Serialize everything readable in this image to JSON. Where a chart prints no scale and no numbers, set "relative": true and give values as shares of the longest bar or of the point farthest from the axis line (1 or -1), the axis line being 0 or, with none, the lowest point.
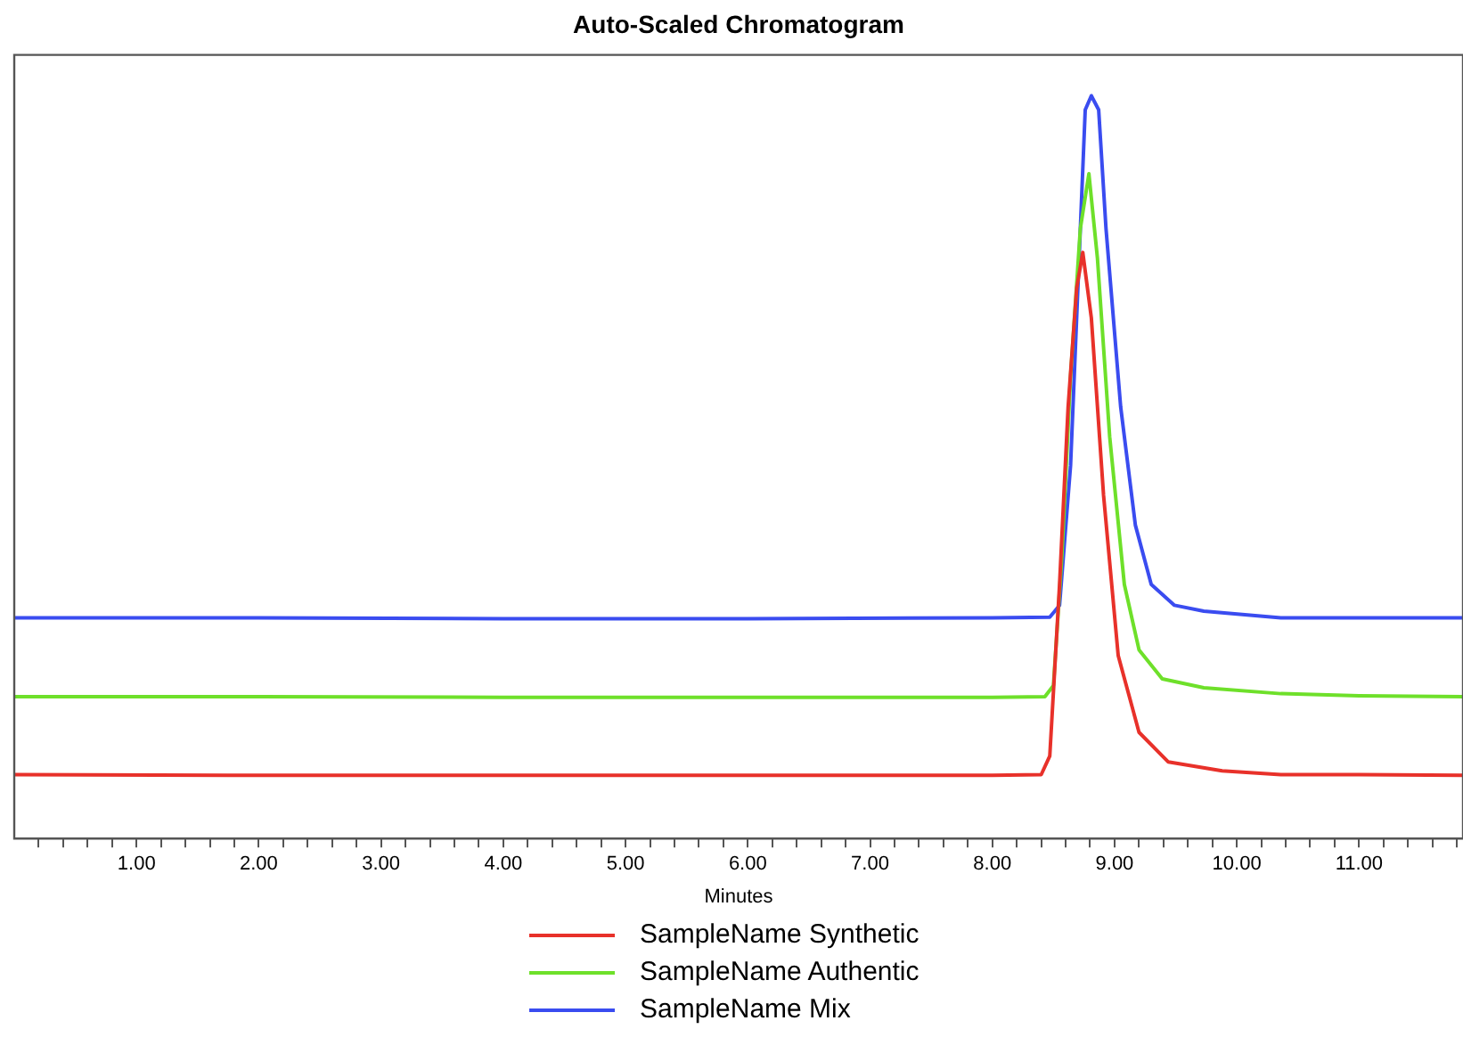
{
  "chart_data": {
    "type": "line",
    "title": "Auto-Scaled Chromatogram",
    "xlabel": "Minutes",
    "relative": true,
    "legend": "bottom",
    "grid": false,
    "marker": "none",
    "line_style": "solid",
    "xlim": [
      0,
      11.85
    ],
    "xticks": [
      {
        "value": 0.2,
        "label": null
      },
      {
        "value": 0.4,
        "label": null
      },
      {
        "value": 0.6,
        "label": null
      },
      {
        "value": 0.8,
        "label": null
      },
      {
        "value": 1,
        "label": "1.00"
      },
      {
        "value": 1.2,
        "label": null
      },
      {
        "value": 1.4,
        "label": null
      },
      {
        "value": 1.6,
        "label": null
      },
      {
        "value": 1.8,
        "label": null
      },
      {
        "value": 2,
        "label": "2.00"
      },
      {
        "value": 2.2,
        "label": null
      },
      {
        "value": 2.4,
        "label": null
      },
      {
        "value": 2.6,
        "label": null
      },
      {
        "value": 2.8,
        "label": null
      },
      {
        "value": 3,
        "label": "3.00"
      },
      {
        "value": 3.2,
        "label": null
      },
      {
        "value": 3.4,
        "label": null
      },
      {
        "value": 3.6,
        "label": null
      },
      {
        "value": 3.8,
        "label": null
      },
      {
        "value": 4,
        "label": "4.00"
      },
      {
        "value": 4.2,
        "label": null
      },
      {
        "value": 4.4,
        "label": null
      },
      {
        "value": 4.6,
        "label": null
      },
      {
        "value": 4.8,
        "label": null
      },
      {
        "value": 5,
        "label": "5.00"
      },
      {
        "value": 5.2,
        "label": null
      },
      {
        "value": 5.4,
        "label": null
      },
      {
        "value": 5.6,
        "label": null
      },
      {
        "value": 5.8,
        "label": null
      },
      {
        "value": 6,
        "label": "6.00"
      },
      {
        "value": 6.2,
        "label": null
      },
      {
        "value": 6.4,
        "label": null
      },
      {
        "value": 6.6,
        "label": null
      },
      {
        "value": 6.8,
        "label": null
      },
      {
        "value": 7,
        "label": "7.00"
      },
      {
        "value": 7.2,
        "label": null
      },
      {
        "value": 7.4,
        "label": null
      },
      {
        "value": 7.6,
        "label": null
      },
      {
        "value": 7.8,
        "label": null
      },
      {
        "value": 8,
        "label": "8.00"
      },
      {
        "value": 8.2,
        "label": null
      },
      {
        "value": 8.4,
        "label": null
      },
      {
        "value": 8.6,
        "label": null
      },
      {
        "value": 8.8,
        "label": null
      },
      {
        "value": 9,
        "label": "9.00"
      },
      {
        "value": 9.2,
        "label": null
      },
      {
        "value": 9.4,
        "label": null
      },
      {
        "value": 9.6,
        "label": null
      },
      {
        "value": 9.8,
        "label": null
      },
      {
        "value": 10,
        "label": "10.00"
      },
      {
        "value": 10.2,
        "label": null
      },
      {
        "value": 10.4,
        "label": null
      },
      {
        "value": 10.6,
        "label": null
      },
      {
        "value": 10.8,
        "label": null
      },
      {
        "value": 11,
        "label": "11.00"
      },
      {
        "value": 11.2,
        "label": null
      },
      {
        "value": 11.4,
        "label": null
      },
      {
        "value": 11.6,
        "label": null
      },
      {
        "value": 11.8,
        "label": null
      }
    ],
    "series": [
      {
        "name": "SampleName Synthetic",
        "color": "#e8312a",
        "x": [
          0,
          2,
          4,
          6,
          8,
          8.4,
          8.47,
          8.55,
          8.62,
          8.69,
          8.74,
          8.81,
          8.91,
          9.03,
          9.2,
          9.44,
          9.88,
          10.36,
          11,
          11.85
        ],
        "values": [
          0.086,
          0.085,
          0.085,
          0.085,
          0.085,
          0.086,
          0.111,
          0.342,
          0.581,
          0.741,
          0.789,
          0.701,
          0.462,
          0.246,
          0.143,
          0.103,
          0.091,
          0.086,
          0.086,
          0.085
        ]
      },
      {
        "name": "SampleName Authentic",
        "color": "#6ee02a",
        "x": [
          0,
          2,
          4,
          6,
          8,
          8.43,
          8.5,
          8.57,
          8.64,
          8.72,
          8.79,
          8.86,
          8.96,
          9.08,
          9.2,
          9.39,
          9.73,
          10.36,
          11,
          11.85
        ],
        "values": [
          0.191,
          0.191,
          0.19,
          0.19,
          0.19,
          0.191,
          0.206,
          0.383,
          0.622,
          0.821,
          0.895,
          0.781,
          0.541,
          0.342,
          0.254,
          0.215,
          0.203,
          0.195,
          0.192,
          0.191
        ]
      },
      {
        "name": "SampleName Mix",
        "color": "#3a4cf0",
        "x": [
          0,
          2,
          4,
          6,
          8,
          8.47,
          8.55,
          8.64,
          8.72,
          8.76,
          8.81,
          8.87,
          8.93,
          9.05,
          9.17,
          9.3,
          9.49,
          9.73,
          10.36,
          11,
          11.85
        ],
        "values": [
          0.297,
          0.297,
          0.296,
          0.296,
          0.297,
          0.298,
          0.314,
          0.502,
          0.821,
          0.981,
          1,
          0.981,
          0.821,
          0.581,
          0.422,
          0.342,
          0.314,
          0.306,
          0.297,
          0.297,
          0.297
        ]
      }
    ]
  }
}
